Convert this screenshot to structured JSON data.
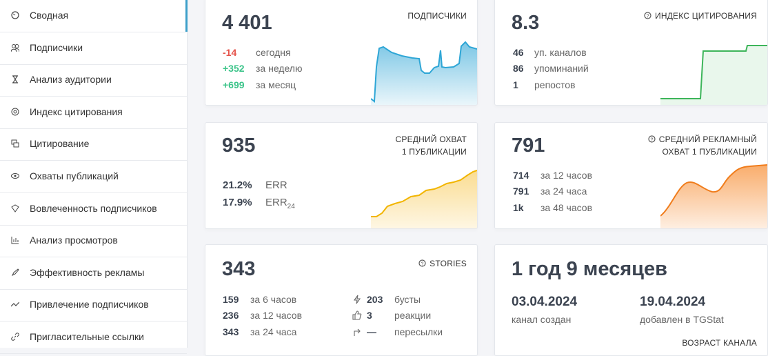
{
  "sidebar": {
    "items": [
      "Сводная",
      "Подписчики",
      "Анализ аудитории",
      "Индекс цитирования",
      "Цитирование",
      "Охваты публикаций",
      "Вовлеченность подписчиков",
      "Анализ просмотров",
      "Эффективность рекламы",
      "Привлечение подписчиков",
      "Пригласительные ссылки"
    ]
  },
  "cards": [
    {
      "value": "4 401",
      "title": "ПОДПИСЧИКИ",
      "stats": [
        {
          "value": "-14",
          "label": "сегодня"
        },
        {
          "value": "+352",
          "label": "за неделю"
        },
        {
          "value": "+699",
          "label": "за месяц"
        }
      ]
    },
    {
      "value": "8.3",
      "title": "ИНДЕКС ЦИТИРОВАНИЯ",
      "stats": [
        {
          "value": "46",
          "label": "уп. каналов"
        },
        {
          "value": "86",
          "label": "упоминаний"
        },
        {
          "value": "1",
          "label": "репостов"
        }
      ]
    },
    {
      "value": "935",
      "title": [
        "СРЕДНИЙ ОХВАТ",
        "1 ПУБЛИКАЦИИ"
      ],
      "stats": [
        {
          "value": "21.2%",
          "label": "ERR"
        },
        {
          "value": "17.9%",
          "label": "ERR",
          "sub": "24"
        }
      ]
    },
    {
      "value": "791",
      "title": [
        "СРЕДНИЙ РЕКЛАМНЫЙ",
        "ОХВАТ 1 ПУБЛИКАЦИИ"
      ],
      "stats": [
        {
          "value": "714",
          "label": "за 12 часов"
        },
        {
          "value": "791",
          "label": "за 24 часа"
        },
        {
          "value": "1k",
          "label": "за 48 часов"
        }
      ]
    },
    {
      "value": "343",
      "title": "STORIES",
      "stats": [
        {
          "value": "159",
          "label": "за 6 часов"
        },
        {
          "value": "236",
          "label": "за 12 часов"
        },
        {
          "value": "343",
          "label": "за 24 часа"
        }
      ],
      "stats2": [
        {
          "value": "203",
          "label": "бусты"
        },
        {
          "value": "3",
          "label": "реакции"
        },
        {
          "value": "—",
          "label": "пересылки"
        }
      ]
    },
    {
      "value": "1 год 9 месяцев",
      "dates": [
        {
          "value": "03.04.2024",
          "label": "канал создан"
        },
        {
          "value": "19.04.2024",
          "label": "добавлен в TGStat"
        }
      ],
      "title": "ВОЗРАСТ КАНАЛА"
    }
  ]
}
